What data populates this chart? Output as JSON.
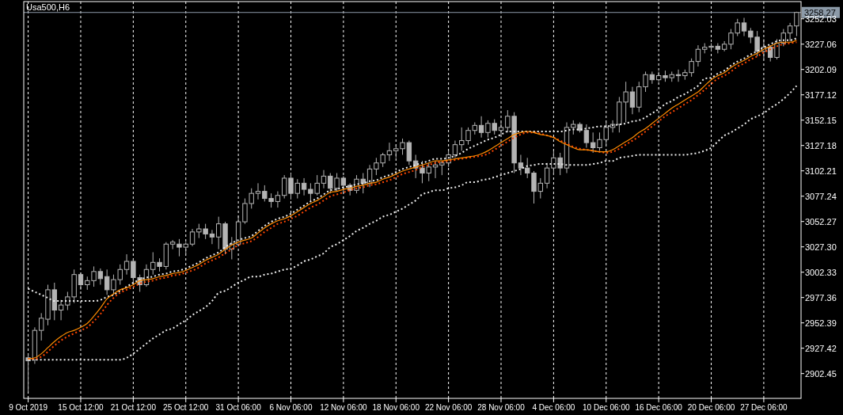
{
  "chart_data": {
    "type": "candlestick",
    "title": "Usa500,H6",
    "categories": [
      "9 Oct 2019",
      null,
      null,
      null,
      null,
      null,
      null,
      null,
      "15 Oct 12:00",
      null,
      null,
      null,
      null,
      null,
      null,
      null,
      "21 Oct 12:00",
      null,
      null,
      null,
      null,
      null,
      null,
      null,
      "25 Oct 12:00",
      null,
      null,
      null,
      null,
      null,
      null,
      null,
      "31 Oct 06:00",
      null,
      null,
      null,
      null,
      null,
      null,
      null,
      "6 Nov 06:00",
      null,
      null,
      null,
      null,
      null,
      null,
      null,
      "12 Nov 06:00",
      null,
      null,
      null,
      null,
      null,
      null,
      null,
      "18 Nov 06:00",
      null,
      null,
      null,
      null,
      null,
      null,
      null,
      "22 Nov 06:00",
      null,
      null,
      null,
      null,
      null,
      null,
      null,
      "28 Nov 06:00",
      null,
      null,
      null,
      null,
      null,
      null,
      null,
      "4 Dec 06:00",
      null,
      null,
      null,
      null,
      null,
      null,
      null,
      "10 Dec 06:00",
      null,
      null,
      null,
      null,
      null,
      null,
      null,
      "16 Dec 06:00",
      null,
      null,
      null,
      null,
      null,
      null,
      null,
      "20 Dec 06:00",
      null,
      null,
      null,
      null,
      null,
      null,
      null,
      "27 Dec 06:00",
      null,
      null,
      null,
      null,
      null
    ],
    "ohlc": [
      [
        2918,
        2922,
        2884,
        2915
      ],
      [
        2916,
        2948,
        2912,
        2945
      ],
      [
        2945,
        2962,
        2935,
        2957
      ],
      [
        2956,
        2990,
        2950,
        2985
      ],
      [
        2985,
        2992,
        2955,
        2965
      ],
      [
        2965,
        2975,
        2955,
        2970
      ],
      [
        2970,
        2983,
        2965,
        2978
      ],
      [
        2978,
        3005,
        2972,
        3000
      ],
      [
        3000,
        3002,
        2985,
        2990
      ],
      [
        2990,
        2998,
        2985,
        2994
      ],
      [
        2994,
        3008,
        2988,
        3003
      ],
      [
        3003,
        3006,
        2990,
        2996
      ],
      [
        2998,
        3005,
        2980,
        2985
      ],
      [
        2985,
        3000,
        2980,
        2995
      ],
      [
        2995,
        3010,
        2990,
        3005
      ],
      [
        3005,
        3020,
        3000,
        3013
      ],
      [
        3013,
        3015,
        2992,
        2997
      ],
      [
        2997,
        3000,
        2983,
        2990
      ],
      [
        2990,
        3010,
        2988,
        3005
      ],
      [
        3005,
        3022,
        3000,
        3012
      ],
      [
        3012,
        3016,
        3003,
        3008
      ],
      [
        3008,
        3032,
        3005,
        3030
      ],
      [
        3030,
        3034,
        3025,
        3032
      ],
      [
        3030,
        3035,
        3018,
        3027
      ],
      [
        3027,
        3032,
        3020,
        3030
      ],
      [
        3030,
        3045,
        3028,
        3042
      ],
      [
        3042,
        3050,
        3036,
        3045
      ],
      [
        3045,
        3050,
        3035,
        3040
      ],
      [
        3040,
        3044,
        3030,
        3037
      ],
      [
        3037,
        3057,
        3025,
        3050
      ],
      [
        3050,
        3052,
        3020,
        3025
      ],
      [
        3025,
        3037,
        3015,
        3030
      ],
      [
        3030,
        3058,
        3028,
        3052
      ],
      [
        3052,
        3075,
        3050,
        3070
      ],
      [
        3070,
        3085,
        3065,
        3080
      ],
      [
        3080,
        3090,
        3074,
        3082
      ],
      [
        3082,
        3088,
        3072,
        3075
      ],
      [
        3075,
        3080,
        3066,
        3072
      ],
      [
        3072,
        3082,
        3066,
        3078
      ],
      [
        3078,
        3098,
        3075,
        3095
      ],
      [
        3095,
        3100,
        3074,
        3080
      ],
      [
        3080,
        3094,
        3075,
        3090
      ],
      [
        3090,
        3095,
        3078,
        3084
      ],
      [
        3084,
        3090,
        3072,
        3080
      ],
      [
        3080,
        3098,
        3078,
        3090
      ],
      [
        3090,
        3103,
        3085,
        3097
      ],
      [
        3097,
        3100,
        3080,
        3085
      ],
      [
        3085,
        3100,
        3082,
        3095
      ],
      [
        3095,
        3097,
        3080,
        3088
      ],
      [
        3088,
        3090,
        3078,
        3083
      ],
      [
        3083,
        3098,
        3080,
        3094
      ],
      [
        3094,
        3100,
        3080,
        3090
      ],
      [
        3090,
        3108,
        3086,
        3104
      ],
      [
        3104,
        3115,
        3098,
        3110
      ],
      [
        3110,
        3120,
        3106,
        3118
      ],
      [
        3118,
        3130,
        3112,
        3122
      ],
      [
        3122,
        3128,
        3115,
        3124
      ],
      [
        3124,
        3134,
        3118,
        3130
      ],
      [
        3130,
        3132,
        3108,
        3112
      ],
      [
        3112,
        3118,
        3095,
        3105
      ],
      [
        3105,
        3112,
        3090,
        3100
      ],
      [
        3100,
        3110,
        3092,
        3106
      ],
      [
        3106,
        3112,
        3095,
        3108
      ],
      [
        3108,
        3112,
        3098,
        3110
      ],
      [
        3110,
        3122,
        3106,
        3118
      ],
      [
        3118,
        3132,
        3115,
        3128
      ],
      [
        3128,
        3145,
        3122,
        3132
      ],
      [
        3132,
        3145,
        3128,
        3142
      ],
      [
        3142,
        3150,
        3138,
        3147
      ],
      [
        3147,
        3156,
        3135,
        3140
      ],
      [
        3140,
        3152,
        3135,
        3149
      ],
      [
        3149,
        3153,
        3138,
        3142
      ],
      [
        3142,
        3150,
        3138,
        3145
      ],
      [
        3145,
        3162,
        3140,
        3156
      ],
      [
        3156,
        3160,
        3100,
        3110
      ],
      [
        3110,
        3118,
        3098,
        3105
      ],
      [
        3105,
        3115,
        3095,
        3100
      ],
      [
        3100,
        3102,
        3070,
        3082
      ],
      [
        3082,
        3095,
        3075,
        3090
      ],
      [
        3090,
        3110,
        3085,
        3105
      ],
      [
        3105,
        3122,
        3098,
        3115
      ],
      [
        3115,
        3120,
        3098,
        3105
      ],
      [
        3105,
        3150,
        3100,
        3145
      ],
      [
        3145,
        3152,
        3138,
        3148
      ],
      [
        3148,
        3150,
        3140,
        3142
      ],
      [
        3142,
        3148,
        3125,
        3130
      ],
      [
        3130,
        3140,
        3120,
        3125
      ],
      [
        3125,
        3140,
        3122,
        3133
      ],
      [
        3133,
        3150,
        3128,
        3145
      ],
      [
        3145,
        3152,
        3140,
        3148
      ],
      [
        3148,
        3175,
        3140,
        3170
      ],
      [
        3170,
        3190,
        3150,
        3180
      ],
      [
        3180,
        3185,
        3158,
        3165
      ],
      [
        3165,
        3190,
        3160,
        3185
      ],
      [
        3185,
        3200,
        3180,
        3197
      ],
      [
        3197,
        3200,
        3188,
        3192
      ],
      [
        3192,
        3200,
        3190,
        3196
      ],
      [
        3196,
        3201,
        3190,
        3194
      ],
      [
        3194,
        3200,
        3190,
        3197
      ],
      [
        3197,
        3202,
        3190,
        3196
      ],
      [
        3196,
        3202,
        3192,
        3199
      ],
      [
        3199,
        3213,
        3195,
        3210
      ],
      [
        3210,
        3226,
        3205,
        3222
      ],
      [
        3222,
        3228,
        3218,
        3224
      ],
      [
        3224,
        3228,
        3220,
        3225
      ],
      [
        3225,
        3228,
        3218,
        3222
      ],
      [
        3222,
        3230,
        3220,
        3227
      ],
      [
        3227,
        3242,
        3222,
        3238
      ],
      [
        3238,
        3252,
        3235,
        3248
      ],
      [
        3248,
        3253,
        3235,
        3240
      ],
      [
        3240,
        3243,
        3228,
        3234
      ],
      [
        3234,
        3240,
        3215,
        3220
      ],
      [
        3220,
        3232,
        3212,
        3224
      ],
      [
        3224,
        3226,
        3210,
        3214
      ],
      [
        3214,
        3232,
        3212,
        3228
      ],
      [
        3228,
        3242,
        3225,
        3238
      ],
      [
        3238,
        3248,
        3230,
        3245
      ],
      [
        3245,
        3259,
        3235,
        3258.27
      ]
    ],
    "series": [
      {
        "type": "line",
        "color": "#f0f0f0",
        "line_style": "dotted",
        "values": [
          2916,
          2916,
          2916,
          2916,
          2916,
          2916,
          2916,
          2916,
          2916,
          2916,
          2916,
          2916,
          2916,
          2916,
          2916,
          2918,
          2922,
          2927,
          2932,
          2937,
          2941,
          2945,
          2947,
          2951,
          2955,
          2960,
          2964,
          2968,
          2974,
          2982,
          2984,
          2988,
          2992,
          2995,
          2998,
          2998,
          3000,
          3001,
          3003,
          3005,
          3006,
          3009,
          3013,
          3015,
          3018,
          3021,
          3027,
          3030,
          3034,
          3038,
          3043,
          3046,
          3050,
          3053,
          3057,
          3059,
          3062,
          3065,
          3069,
          3073,
          3079,
          3081,
          3083,
          3083,
          3085,
          3086,
          3088,
          3091,
          3091,
          3093,
          3094,
          3096,
          3098,
          3100,
          3102,
          3104,
          3107,
          3108,
          3109,
          3109,
          3109,
          3109,
          3108,
          3108,
          3108,
          3108,
          3109,
          3110,
          3112,
          3112,
          3115,
          3116,
          3117,
          3118,
          3118,
          3118,
          3118,
          3118,
          3118,
          3118,
          3118,
          3119,
          3120,
          3122,
          3125,
          3131,
          3137,
          3140,
          3144,
          3148,
          3153,
          3156,
          3159,
          3164,
          3168,
          3173,
          3179,
          3186
        ]
      },
      {
        "type": "line",
        "color": "#f0f0f0",
        "line_style": "dotted",
        "values": [
          2986,
          2983,
          2980,
          2977,
          2974,
          2974,
          2974,
          2974,
          2974,
          2974,
          2974,
          2975,
          2978,
          2980,
          2984,
          2988,
          2992,
          2995,
          2997,
          2998,
          3000,
          3001,
          3003,
          3004,
          3006,
          3009,
          3012,
          3016,
          3019,
          3022,
          3027,
          3031,
          3034,
          3036,
          3038,
          3043,
          3048,
          3052,
          3055,
          3057,
          3060,
          3064,
          3068,
          3072,
          3075,
          3079,
          3083,
          3084,
          3086,
          3087,
          3089,
          3090,
          3092,
          3093,
          3096,
          3098,
          3101,
          3104,
          3106,
          3108,
          3110,
          3112,
          3114,
          3114,
          3115,
          3117,
          3120,
          3124,
          3127,
          3130,
          3133,
          3135,
          3138,
          3141,
          3141,
          3141,
          3141,
          3141,
          3141,
          3141,
          3141,
          3141,
          3142,
          3143,
          3143,
          3144,
          3145,
          3146,
          3146,
          3147,
          3148,
          3149,
          3151,
          3152,
          3155,
          3159,
          3163,
          3168,
          3171,
          3175,
          3178,
          3182,
          3186,
          3193,
          3194,
          3198,
          3201,
          3206,
          3210,
          3213,
          3217,
          3220,
          3224,
          3227,
          3230,
          3231,
          3231,
          3233
        ]
      },
      {
        "type": "line",
        "color": "#ff4500",
        "line_style": "dotted",
        "values": [
          2917,
          2917,
          2919,
          2924,
          2930,
          2935,
          2939,
          2942,
          2945,
          2948,
          2954,
          2961,
          2970,
          2977,
          2982,
          2985,
          2988,
          2991,
          2993,
          2994,
          2996,
          2997,
          2999,
          3000,
          3002,
          3004,
          3007,
          3011,
          3014,
          3017,
          3021,
          3025,
          3029,
          3031,
          3033,
          3037,
          3042,
          3046,
          3050,
          3052,
          3055,
          3058,
          3062,
          3066,
          3069,
          3073,
          3077,
          3079,
          3081,
          3083,
          3085,
          3086,
          3088,
          3089,
          3091,
          3093,
          3096,
          3099,
          3101,
          3103,
          3106,
          3108,
          3110,
          3111,
          3112,
          3113,
          3114,
          3115,
          3116,
          3117,
          3119,
          3123,
          3127,
          3131,
          3135,
          3138,
          3140,
          3140,
          3139,
          3137,
          3135,
          3132,
          3129,
          3126,
          3124,
          3123,
          3122,
          3121,
          3120,
          3121,
          3124,
          3128,
          3132,
          3136,
          3141,
          3146,
          3151,
          3156,
          3160,
          3164,
          3168,
          3172,
          3177,
          3182,
          3188,
          3193,
          3196,
          3200,
          3205,
          3208,
          3212,
          3215,
          3219,
          3222,
          3225,
          3227,
          3228,
          3229
        ]
      },
      {
        "type": "line",
        "color": "#ff8c00",
        "line_style": "solid",
        "values": [
          2917,
          2918,
          2922,
          2928,
          2934,
          2939,
          2943,
          2945,
          2948,
          2952,
          2959,
          2967,
          2976,
          2981,
          2985,
          2987,
          2990,
          2994,
          2995,
          2996,
          2998,
          2999,
          3001,
          3002,
          3004,
          3007,
          3010,
          3014,
          3017,
          3020,
          3025,
          3029,
          3032,
          3034,
          3036,
          3041,
          3046,
          3050,
          3053,
          3055,
          3058,
          3062,
          3066,
          3070,
          3073,
          3077,
          3081,
          3082,
          3084,
          3085,
          3087,
          3088,
          3090,
          3091,
          3094,
          3096,
          3099,
          3102,
          3104,
          3106,
          3108,
          3110,
          3112,
          3112,
          3113,
          3114,
          3115,
          3116,
          3117,
          3119,
          3122,
          3126,
          3130,
          3134,
          3138,
          3140,
          3141,
          3140,
          3138,
          3137,
          3135,
          3131,
          3128,
          3125,
          3123,
          3123,
          3122,
          3121,
          3121,
          3123,
          3127,
          3131,
          3135,
          3140,
          3144,
          3149,
          3154,
          3159,
          3164,
          3168,
          3172,
          3176,
          3180,
          3186,
          3192,
          3196,
          3199,
          3204,
          3208,
          3211,
          3215,
          3218,
          3222,
          3225,
          3228,
          3229,
          3229,
          3231
        ]
      }
    ],
    "ylim": [
      2878,
      3269
    ],
    "yticks": [
      2902.45,
      2927.42,
      2952.39,
      2977.36,
      3002.33,
      {
        "value": 3027.3,
        "label": "3027.30"
      },
      3052.27,
      3077.24,
      3102.21,
      3127.18,
      3152.15,
      3177.12,
      3202.09,
      3227.06,
      3252.03
    ],
    "ref_lines": [
      {
        "axis": "y",
        "value": 3258.27,
        "label": "3258.27",
        "color": "#8c9aa8"
      }
    ],
    "grid": "x"
  }
}
